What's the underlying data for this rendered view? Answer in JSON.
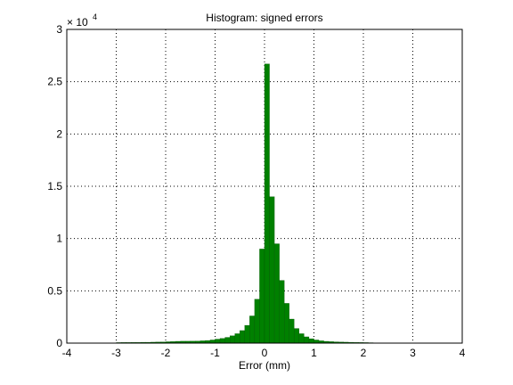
{
  "chart_data": {
    "type": "histogram",
    "title": "Histogram: signed errors",
    "xlabel": "Error (mm)",
    "y_scale_base": "× 10",
    "y_scale_exponent": "4",
    "bins": [
      -3.0,
      -2.9,
      -2.8,
      -2.7,
      -2.6,
      -2.5,
      -2.4,
      -2.3,
      -2.2,
      -2.1,
      -2.0,
      -1.9,
      -1.8,
      -1.7,
      -1.6,
      -1.5,
      -1.4,
      -1.3,
      -1.2,
      -1.1,
      -1.0,
      -0.9,
      -0.8,
      -0.7,
      -0.6,
      -0.5,
      -0.4,
      -0.3,
      -0.2,
      -0.1,
      0.0,
      0.1,
      0.2,
      0.3,
      0.4,
      0.5,
      0.6,
      0.7,
      0.8,
      0.9,
      1.0,
      1.1,
      1.2,
      1.3,
      1.4,
      1.5,
      1.6,
      1.7,
      1.8,
      1.9,
      2.0,
      2.1,
      2.2
    ],
    "counts": [
      50,
      60,
      60,
      70,
      70,
      80,
      80,
      90,
      100,
      110,
      130,
      150,
      170,
      180,
      180,
      190,
      200,
      220,
      250,
      300,
      380,
      450,
      550,
      700,
      900,
      1200,
      1700,
      2600,
      4200,
      9000,
      26700,
      14000,
      9500,
      6000,
      3800,
      2300,
      1400,
      900,
      600,
      420,
      300,
      220,
      170,
      140,
      120,
      100,
      90,
      80,
      70,
      60,
      50,
      40
    ],
    "color": "#008000",
    "xlim": [
      -4,
      4
    ],
    "xticks": [
      -4,
      -3,
      -2,
      -1,
      0,
      1,
      2,
      3,
      4
    ],
    "ylim": [
      0,
      30000
    ],
    "yticks": [
      0,
      {
        "value": 5000,
        "label": "0.5"
      },
      {
        "value": 10000,
        "label": "1"
      },
      {
        "value": 15000,
        "label": "1.5"
      },
      {
        "value": 20000,
        "label": "2"
      },
      {
        "value": 25000,
        "label": "2.5"
      },
      {
        "value": 30000,
        "label": "3"
      }
    ],
    "grid": true
  }
}
